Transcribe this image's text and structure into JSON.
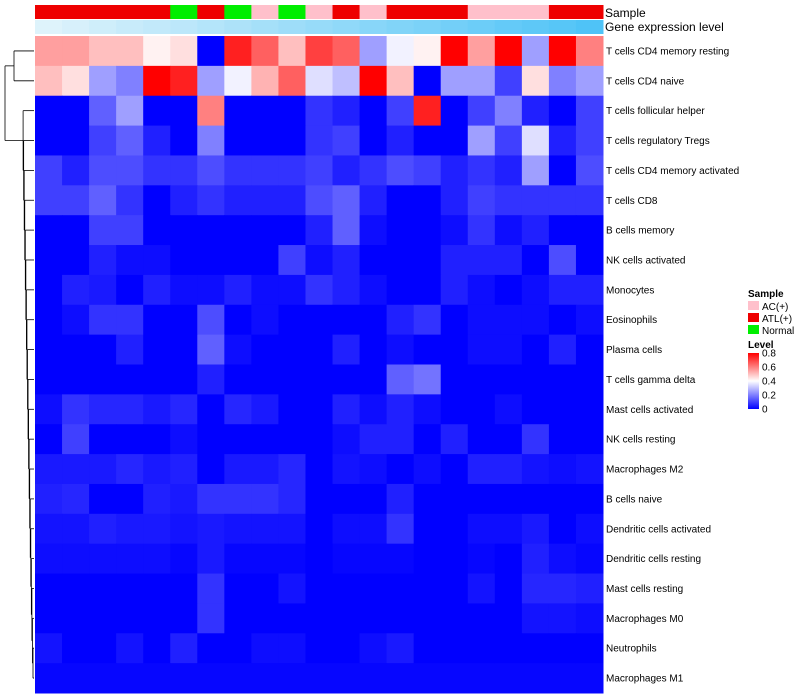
{
  "chart_data": {
    "type": "heatmap",
    "title": "",
    "tracks": [
      {
        "name": "Sample",
        "values": [
          "ATL(+)",
          "ATL(+)",
          "ATL(+)",
          "ATL(+)",
          "ATL(+)",
          "Normal",
          "ATL(+)",
          "Normal",
          "AC(+)",
          "Normal",
          "AC(+)",
          "ATL(+)",
          "AC(+)",
          "ATL(+)",
          "ATL(+)",
          "ATL(+)",
          "AC(+)",
          "AC(+)",
          "AC(+)",
          "ATL(+)",
          "ATL(+)"
        ]
      },
      {
        "name": "Gene expression level",
        "values": [
          0.05,
          0.1,
          0.15,
          0.2,
          0.24,
          0.28,
          0.33,
          0.38,
          0.43,
          0.48,
          0.52,
          0.57,
          0.62,
          0.67,
          0.71,
          0.76,
          0.81,
          0.86,
          0.9,
          0.95,
          1.0
        ]
      }
    ],
    "rows": [
      "T cells CD4 memory resting",
      "T cells CD4 naive",
      "T cells follicular helper",
      "T cells regulatory  Tregs",
      "T cells CD4 memory activated",
      "T cells CD8",
      "B cells memory",
      "NK cells activated",
      "Monocytes",
      "Eosinophils",
      "Plasma cells",
      "T cells gamma delta",
      "Mast cells activated",
      "NK cells resting",
      "Macrophages M2",
      "B cells naive",
      "Dendritic cells activated",
      "Dendritic cells resting",
      "Mast cells resting",
      "Macrophages M0",
      "Neutrophils",
      "Macrophages M1"
    ],
    "columns": 21,
    "values": [
      [
        0.55,
        0.55,
        0.5,
        0.5,
        0.42,
        0.45,
        0.0,
        0.75,
        0.65,
        0.5,
        0.7,
        0.65,
        0.25,
        0.38,
        0.42,
        0.8,
        0.55,
        0.8,
        0.25,
        0.8,
        0.6
      ],
      [
        0.5,
        0.45,
        0.25,
        0.2,
        0.8,
        0.75,
        0.25,
        0.38,
        0.52,
        0.65,
        0.35,
        0.3,
        0.8,
        0.5,
        0.0,
        0.25,
        0.25,
        0.1,
        0.45,
        0.2,
        0.25
      ],
      [
        0.0,
        0.0,
        0.15,
        0.25,
        0.0,
        0.0,
        0.6,
        0.0,
        0.0,
        0.0,
        0.08,
        0.05,
        0.0,
        0.1,
        0.75,
        0.0,
        0.1,
        0.2,
        0.05,
        0.0,
        0.1
      ],
      [
        0.0,
        0.0,
        0.1,
        0.15,
        0.05,
        0.0,
        0.2,
        0.0,
        0.0,
        0.0,
        0.08,
        0.1,
        0.0,
        0.05,
        0.0,
        0.0,
        0.25,
        0.1,
        0.35,
        0.05,
        0.1
      ],
      [
        0.1,
        0.05,
        0.12,
        0.12,
        0.08,
        0.08,
        0.12,
        0.08,
        0.08,
        0.08,
        0.1,
        0.05,
        0.08,
        0.12,
        0.1,
        0.05,
        0.08,
        0.05,
        0.25,
        0.0,
        0.12
      ],
      [
        0.1,
        0.1,
        0.15,
        0.08,
        0.0,
        0.05,
        0.08,
        0.05,
        0.05,
        0.05,
        0.12,
        0.15,
        0.05,
        0.0,
        0.0,
        0.05,
        0.1,
        0.08,
        0.08,
        0.08,
        0.08
      ],
      [
        0.0,
        0.0,
        0.1,
        0.1,
        0.0,
        0.0,
        0.0,
        0.0,
        0.0,
        0.0,
        0.05,
        0.15,
        0.02,
        0.0,
        0.0,
        0.02,
        0.08,
        0.02,
        0.05,
        0.0,
        0.0
      ],
      [
        0.0,
        0.0,
        0.05,
        0.02,
        0.02,
        0.0,
        0.0,
        0.0,
        0.0,
        0.1,
        0.02,
        0.05,
        0.0,
        0.0,
        0.0,
        0.05,
        0.05,
        0.05,
        0.0,
        0.12,
        0.0
      ],
      [
        0.0,
        0.05,
        0.04,
        0.0,
        0.05,
        0.02,
        0.02,
        0.05,
        0.02,
        0.02,
        0.08,
        0.05,
        0.02,
        0.0,
        0.0,
        0.05,
        0.02,
        0.0,
        0.02,
        0.05,
        0.05
      ],
      [
        0.0,
        0.02,
        0.08,
        0.08,
        0.0,
        0.0,
        0.12,
        0.0,
        0.02,
        0.0,
        0.0,
        0.0,
        0.0,
        0.05,
        0.08,
        0.0,
        0.02,
        0.02,
        0.02,
        0.0,
        0.02
      ],
      [
        0.0,
        0.0,
        0.0,
        0.05,
        0.0,
        0.0,
        0.15,
        0.02,
        0.0,
        0.0,
        0.0,
        0.05,
        0.0,
        0.02,
        0.0,
        0.0,
        0.02,
        0.02,
        0.0,
        0.05,
        0.0
      ],
      [
        0.0,
        0.0,
        0.0,
        0.0,
        0.0,
        0.0,
        0.05,
        0.0,
        0.0,
        0.0,
        0.0,
        0.0,
        0.0,
        0.15,
        0.18,
        0.0,
        0.0,
        0.0,
        0.0,
        0.0,
        0.0
      ],
      [
        0.02,
        0.08,
        0.06,
        0.06,
        0.04,
        0.06,
        0.0,
        0.06,
        0.04,
        0.0,
        0.0,
        0.05,
        0.02,
        0.05,
        0.02,
        0.0,
        0.0,
        0.02,
        0.0,
        0.0,
        0.0
      ],
      [
        0.0,
        0.1,
        0.0,
        0.0,
        0.0,
        0.02,
        0.0,
        0.0,
        0.0,
        0.0,
        0.0,
        0.02,
        0.05,
        0.05,
        0.0,
        0.05,
        0.0,
        0.0,
        0.08,
        0.0,
        0.0
      ],
      [
        0.04,
        0.04,
        0.04,
        0.06,
        0.04,
        0.05,
        0.0,
        0.04,
        0.04,
        0.06,
        0.0,
        0.03,
        0.02,
        0.0,
        0.02,
        0.0,
        0.05,
        0.05,
        0.03,
        0.02,
        0.03
      ],
      [
        0.05,
        0.06,
        0.0,
        0.0,
        0.05,
        0.04,
        0.08,
        0.08,
        0.08,
        0.06,
        0.0,
        0.0,
        0.0,
        0.05,
        0.0,
        0.0,
        0.0,
        0.0,
        0.0,
        0.0,
        0.0
      ],
      [
        0.03,
        0.03,
        0.05,
        0.04,
        0.04,
        0.03,
        0.04,
        0.03,
        0.03,
        0.03,
        0.0,
        0.02,
        0.02,
        0.08,
        0.0,
        0.0,
        0.02,
        0.02,
        0.04,
        0.0,
        0.02
      ],
      [
        0.02,
        0.02,
        0.02,
        0.02,
        0.02,
        0.01,
        0.04,
        0.01,
        0.01,
        0.01,
        0.0,
        0.01,
        0.01,
        0.01,
        0.0,
        0.0,
        0.01,
        0.0,
        0.05,
        0.02,
        0.01
      ],
      [
        0.0,
        0.0,
        0.0,
        0.0,
        0.0,
        0.0,
        0.08,
        0.0,
        0.0,
        0.03,
        0.0,
        0.0,
        0.0,
        0.0,
        0.0,
        0.0,
        0.03,
        0.0,
        0.06,
        0.06,
        0.05
      ],
      [
        0.0,
        0.0,
        0.0,
        0.0,
        0.0,
        0.0,
        0.08,
        0.0,
        0.0,
        0.0,
        0.0,
        0.0,
        0.0,
        0.0,
        0.0,
        0.0,
        0.0,
        0.0,
        0.03,
        0.03,
        0.02
      ],
      [
        0.03,
        0.0,
        0.0,
        0.03,
        0.0,
        0.05,
        0.0,
        0.0,
        0.02,
        0.02,
        0.0,
        0.0,
        0.02,
        0.04,
        0.0,
        0.0,
        0.0,
        0.0,
        0.0,
        0.0,
        0.0
      ],
      [
        0.01,
        0.01,
        0.01,
        0.01,
        0.01,
        0.01,
        0.01,
        0.01,
        0.01,
        0.01,
        0.01,
        0.01,
        0.01,
        0.01,
        0.01,
        0.01,
        0.01,
        0.01,
        0.01,
        0.01,
        0.01
      ]
    ],
    "legend": {
      "sample_title": "Sample",
      "sample_items": [
        {
          "label": "AC(+)",
          "color": "#FFC0CB"
        },
        {
          "label": "ATL(+)",
          "color": "#EE0000"
        },
        {
          "label": "Normal",
          "color": "#00EE00"
        }
      ],
      "level_title": "Level",
      "level_ticks": [
        0.8,
        0.6,
        0.4,
        0.2,
        0
      ],
      "level_range": [
        0,
        0.8
      ]
    },
    "colors": {
      "low": "#0000FF",
      "mid": "#FFFFFF",
      "high": "#FF0000",
      "expr_low": "#E6F5FB",
      "expr_high": "#4FC3F7"
    }
  }
}
